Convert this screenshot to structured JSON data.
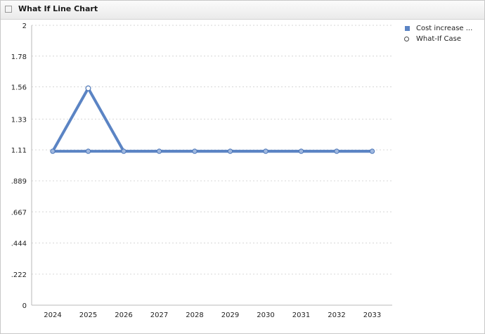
{
  "header": {
    "title": "What If Line Chart"
  },
  "legend": {
    "items": [
      "Cost increase ...",
      "What-If Case"
    ]
  },
  "colors": {
    "series_line": "#5b84c4",
    "marker_fill": "#9fb8e0",
    "grid": "#d6d6d6",
    "axis": "#b8b8b8"
  },
  "chart_data": {
    "type": "line",
    "title": "What If Line Chart",
    "xlabel": "",
    "ylabel": "",
    "categories": [
      "2024",
      "2025",
      "2026",
      "2027",
      "2028",
      "2029",
      "2030",
      "2031",
      "2032",
      "2033"
    ],
    "series": [
      {
        "name": "Cost increase ...",
        "values": [
          1.1,
          1.1,
          1.1,
          1.1,
          1.1,
          1.1,
          1.1,
          1.1,
          1.1,
          1.1
        ]
      },
      {
        "name": "What-If Case",
        "values": [
          1.1,
          1.55,
          1.1,
          1.1,
          1.1,
          1.1,
          1.1,
          1.1,
          1.1,
          1.1
        ]
      }
    ],
    "y_ticks": [
      {
        "value": 0,
        "label": "0"
      },
      {
        "value": 0.222,
        "label": ".222"
      },
      {
        "value": 0.444,
        "label": ".444"
      },
      {
        "value": 0.667,
        "label": ".667"
      },
      {
        "value": 0.889,
        "label": ".889"
      },
      {
        "value": 1.11,
        "label": "1.11"
      },
      {
        "value": 1.33,
        "label": "1.33"
      },
      {
        "value": 1.56,
        "label": "1.56"
      },
      {
        "value": 1.78,
        "label": "1.78"
      },
      {
        "value": 2,
        "label": "2"
      }
    ],
    "ylim": [
      0,
      2
    ],
    "grid": true,
    "legend_position": "top-right"
  }
}
